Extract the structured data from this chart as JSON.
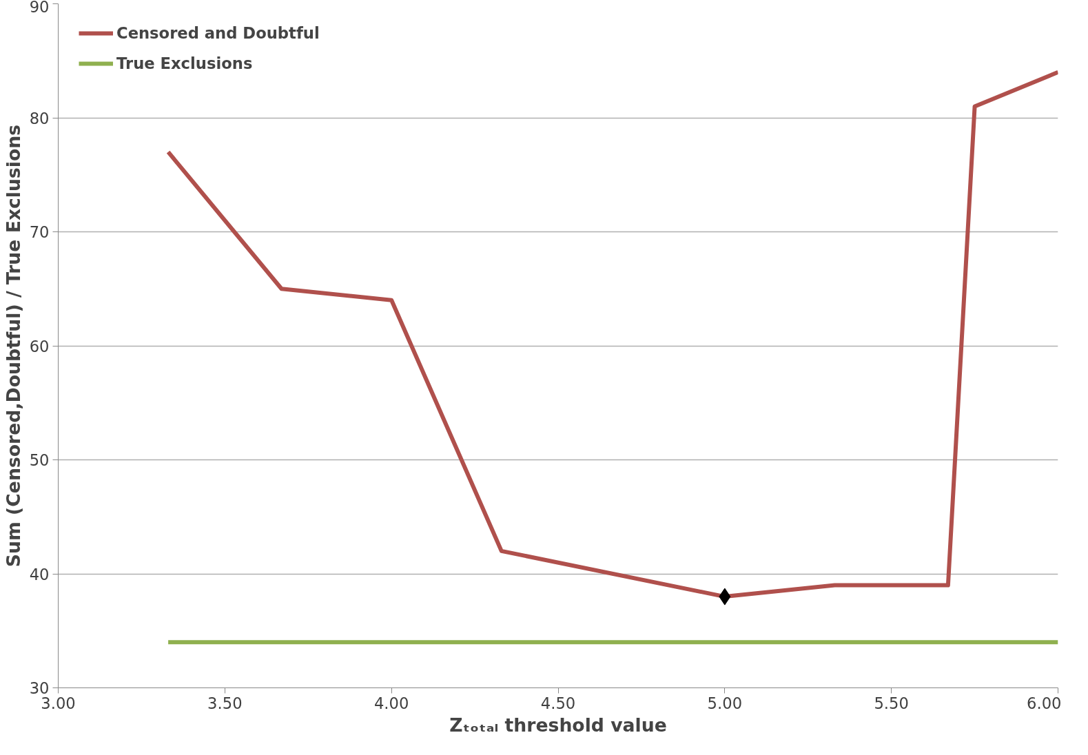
{
  "chart_data": {
    "type": "line",
    "xlabel": "Zₜₒₜₐₗ threshold value",
    "ylabel": "Sum (Censored,Doubtful) / True Exclusions",
    "xlim": [
      3,
      6
    ],
    "ylim": [
      30,
      90
    ],
    "xticks": [
      {
        "value": 3,
        "label": "3.00"
      },
      {
        "value": 3.5,
        "label": "3.50"
      },
      {
        "value": 4,
        "label": "4.00"
      },
      {
        "value": 4.5,
        "label": "4.50"
      },
      {
        "value": 5,
        "label": "5.00"
      },
      {
        "value": 5.5,
        "label": "5.50"
      },
      {
        "value": 6,
        "label": "6.00"
      }
    ],
    "yticks": [
      30,
      40,
      50,
      60,
      70,
      80,
      90
    ],
    "grid": "y",
    "legend": "top left",
    "series": [
      {
        "name": "Censored and Doubtful",
        "color": "#b0504c",
        "x": [
          3.33,
          3.67,
          4.0,
          4.33,
          5.0,
          5.33,
          5.67,
          5.75,
          6.0
        ],
        "values": [
          77,
          65,
          64,
          42,
          38,
          39,
          39,
          81,
          84
        ]
      },
      {
        "name": "True Exclusions",
        "color": "#8fb04f",
        "x": [
          3.33,
          6.0
        ],
        "values": [
          34,
          34
        ]
      },
      {
        "type": "scatter",
        "marker": "diamond",
        "color": "#000000",
        "x": [
          5.0
        ],
        "values": [
          38
        ]
      }
    ]
  }
}
